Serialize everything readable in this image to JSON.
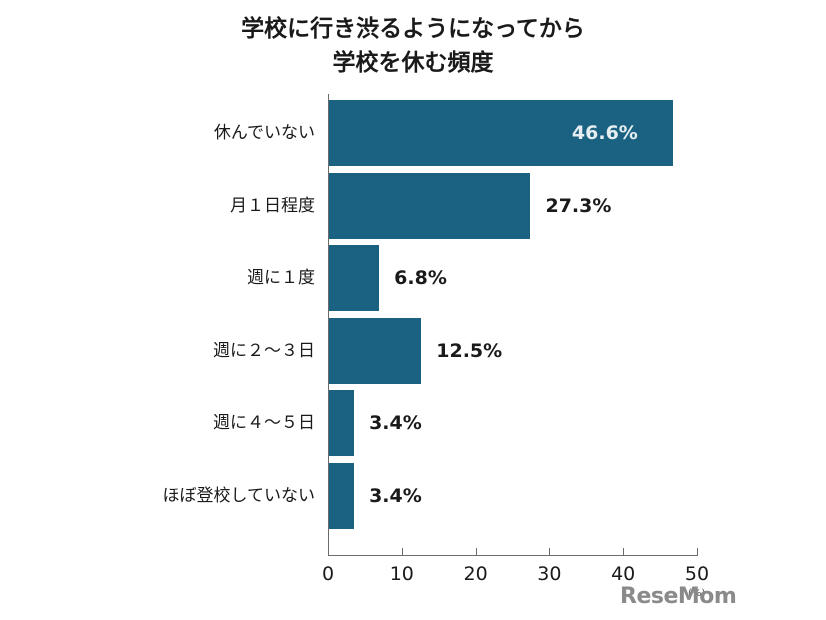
{
  "chart_data": {
    "type": "bar",
    "orientation": "horizontal",
    "title": "学校に行き渋るようになってから 学校を休む頻度",
    "title_lines": [
      "学校に行き渋るようになってから",
      "学校を休む頻度"
    ],
    "categories": [
      "休んでいない",
      "月１日程度",
      "週に１度",
      "週に２～３日",
      "週に４～５日",
      "ほぼ登校していない"
    ],
    "values": [
      46.6,
      27.3,
      6.8,
      12.5,
      3.4,
      3.4
    ],
    "value_labels": [
      "46.6%",
      "27.3%",
      "6.8%",
      "12.5%",
      "3.4%",
      "3.4%"
    ],
    "xlabel": "",
    "ylabel": "",
    "x_unit": "(%)",
    "xlim": [
      0,
      50
    ],
    "x_ticks": [
      "0",
      "10",
      "20",
      "30",
      "40",
      "50"
    ],
    "grid": false,
    "legend": null,
    "bar_color": "#1b6282"
  },
  "watermark": "ReseMom"
}
